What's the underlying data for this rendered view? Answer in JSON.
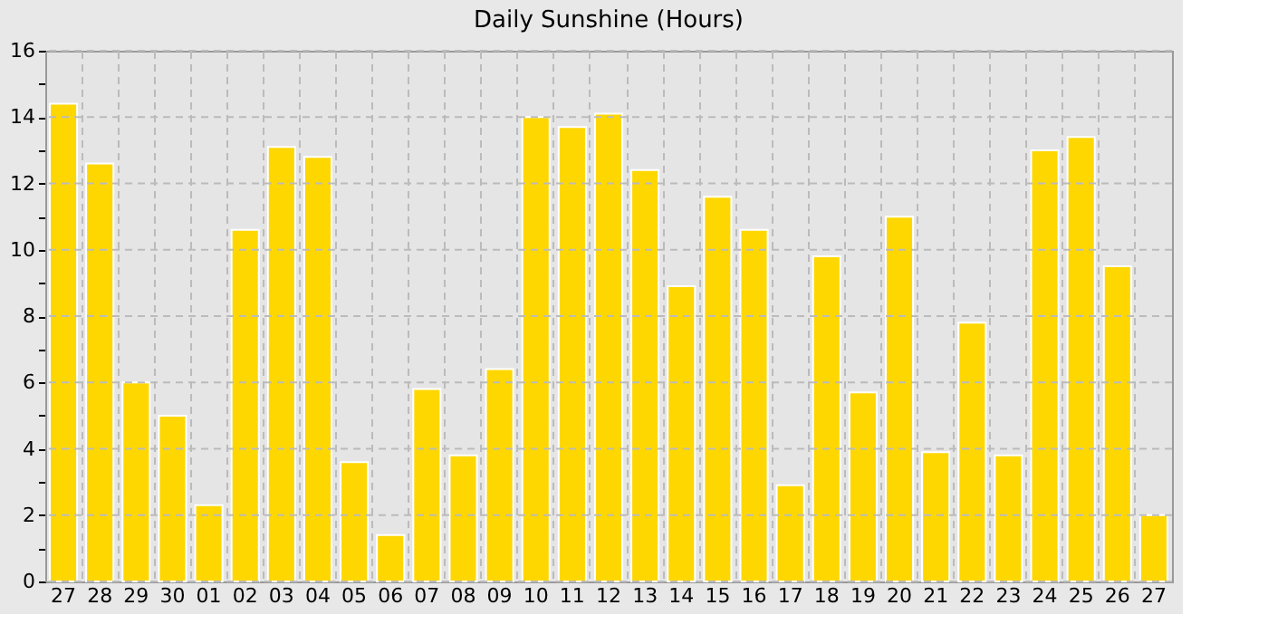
{
  "chart_data": {
    "type": "bar",
    "title": "Daily Sunshine (Hours)",
    "categories": [
      "27",
      "28",
      "29",
      "30",
      "01",
      "02",
      "03",
      "04",
      "05",
      "06",
      "07",
      "08",
      "09",
      "10",
      "11",
      "12",
      "13",
      "14",
      "15",
      "16",
      "17",
      "18",
      "19",
      "20",
      "21",
      "22",
      "23",
      "24",
      "25",
      "26",
      "27"
    ],
    "values": [
      14.4,
      12.6,
      6.0,
      5.0,
      2.3,
      10.6,
      13.1,
      12.8,
      3.6,
      1.4,
      5.8,
      3.8,
      6.4,
      14.0,
      13.7,
      14.1,
      12.4,
      8.9,
      11.6,
      10.6,
      2.9,
      9.8,
      5.7,
      11.0,
      3.9,
      7.8,
      3.8,
      13.0,
      13.4,
      9.5,
      2.0
    ],
    "color": "#ffd700",
    "ylim": [
      0,
      16
    ],
    "yticks": [
      0,
      {
        "value": 1,
        "label": null
      },
      2,
      {
        "value": 3,
        "label": null
      },
      4,
      {
        "value": 5,
        "label": null
      },
      6,
      {
        "value": 7,
        "label": null
      },
      8,
      {
        "value": 9,
        "label": null
      },
      10,
      {
        "value": 11,
        "label": null
      },
      12,
      {
        "value": 13,
        "label": null
      },
      14,
      {
        "value": 15,
        "label": null
      },
      16
    ],
    "grid": true
  }
}
